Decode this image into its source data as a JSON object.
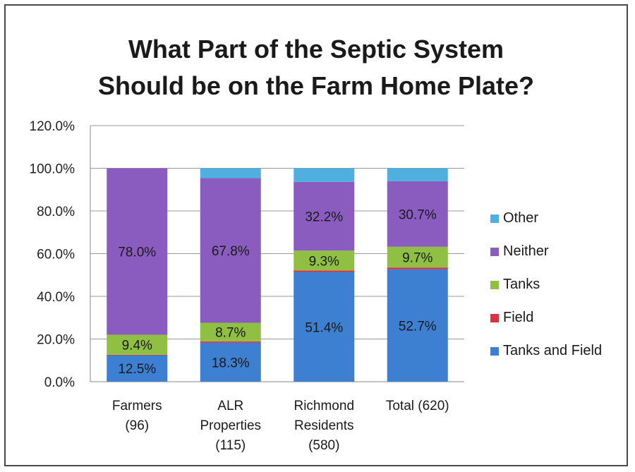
{
  "chart_data": {
    "type": "bar",
    "stacked": true,
    "title_lines": [
      "What Part of the Septic System",
      "Should be on the Farm Home Plate?"
    ],
    "xlabel": "",
    "ylabel": "",
    "ylim": [
      0,
      120
    ],
    "yticks": [
      "0.0%",
      "20.0%",
      "40.0%",
      "60.0%",
      "80.0%",
      "100.0%",
      "120.0%"
    ],
    "ytick_values": [
      0,
      20,
      40,
      60,
      80,
      100,
      120
    ],
    "grid": true,
    "legend_position": "right",
    "categories": [
      [
        "Farmers",
        "(96)"
      ],
      [
        "ALR",
        "Properties",
        "(115)"
      ],
      [
        "Richmond",
        "Residents",
        "(580)"
      ],
      [
        "Total (620)"
      ]
    ],
    "series": [
      {
        "name": "Tanks and Field",
        "color": "#3d7fd1",
        "values": [
          12.5,
          18.3,
          51.4,
          52.7
        ],
        "labels": [
          "12.5%",
          "18.3%",
          "51.4%",
          "52.7%"
        ]
      },
      {
        "name": "Field",
        "color": "#e0303e",
        "values": [
          0.1,
          0.6,
          0.7,
          0.8
        ],
        "labels": [
          "",
          "",
          "",
          ""
        ]
      },
      {
        "name": "Tanks",
        "color": "#8fc044",
        "values": [
          9.4,
          8.7,
          9.3,
          9.7
        ],
        "labels": [
          "9.4%",
          "8.7%",
          "9.3%",
          "9.7%"
        ]
      },
      {
        "name": "Neither",
        "color": "#8a5cc0",
        "values": [
          78.0,
          67.8,
          32.2,
          30.7
        ],
        "labels": [
          "78.0%",
          "67.8%",
          "32.2%",
          "30.7%"
        ]
      },
      {
        "name": "Other",
        "color": "#4fb0e0",
        "values": [
          0.0,
          4.6,
          6.4,
          6.1
        ],
        "labels": [
          "",
          "",
          "",
          ""
        ]
      }
    ],
    "legend_order": [
      "Other",
      "Neither",
      "Tanks",
      "Field",
      "Tanks and Field"
    ]
  }
}
